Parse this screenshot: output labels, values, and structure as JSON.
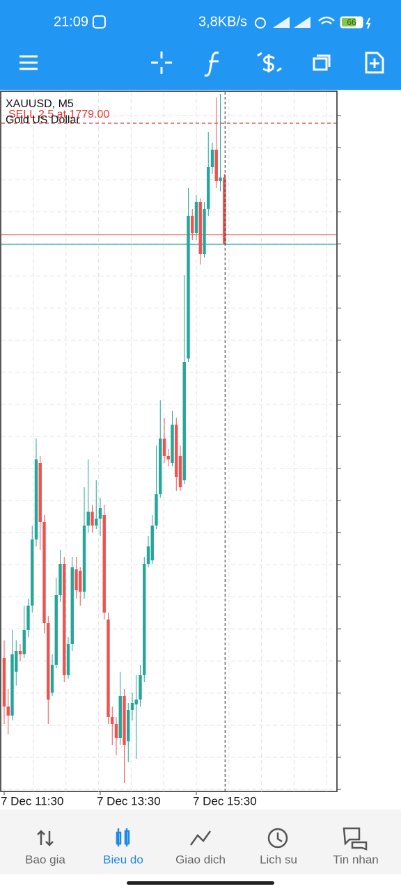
{
  "status_bar": {
    "time": "21:09",
    "network_speed": "3,8KB/s",
    "battery": "66"
  },
  "chart_data": {
    "type": "candlestick",
    "symbol": "XAUUSD, M5",
    "description": "Gold US Dollar",
    "order_label": "SELL 2.5 at 1779.00",
    "order_price": 1779.0,
    "order_color": "#e53935",
    "price_lines": [
      {
        "value": 1777.4,
        "color": "#ef5350"
      },
      {
        "value": 1777.26,
        "color": "#26a69a"
      }
    ],
    "categories": [
      "7 Dec 11:30",
      null,
      null,
      null,
      null,
      null,
      null,
      null,
      null,
      null,
      null,
      null,
      null,
      null,
      null,
      null,
      null,
      null,
      null,
      null,
      null,
      null,
      null,
      null,
      "7 Dec 13:30",
      null,
      null,
      null,
      null,
      null,
      null,
      null,
      null,
      null,
      null,
      null,
      null,
      null,
      null,
      null,
      null,
      null,
      null,
      null,
      null,
      null,
      null,
      null,
      "7 Dec 15:30",
      null,
      null,
      null,
      null,
      null,
      null,
      null
    ],
    "open": [
      1771.32,
      1770.62,
      1770.49,
      1771.12,
      1771.42,
      1771.37,
      1771.72,
      1772.07,
      1773.02,
      1774.12,
      1773.27,
      1771.82,
      1770.82,
      1771.22,
      1772.22,
      1772.67,
      1771.07,
      1771.52,
      1772.59,
      1772.57,
      1772.27,
      1773.22,
      1773.42,
      1773.22,
      1773.32,
      1773.37,
      1771.87,
      1770.47,
      1770.37,
      1770.17,
      1770.77,
      1770.12,
      1770.57,
      1770.65,
      1770.72,
      1771.07,
      1772.67,
      1772.72,
      1773.22,
      1773.67,
      1774.47,
      1774.22,
      1774.12,
      1774.67,
      1774.22,
      1773.87,
      1775.62,
      1777.67,
      1777.42,
      1777.87,
      1777.12,
      1777.77,
      1778.37,
      1778.62,
      1778.17,
      1778.22
    ],
    "high": [
      1771.57,
      1770.87,
      1771.72,
      1771.57,
      1771.52,
      1772.07,
      1772.17,
      1773.22,
      1774.47,
      1774.22,
      1773.37,
      1771.92,
      1771.37,
      1772.47,
      1772.87,
      1772.77,
      1771.62,
      1772.77,
      1772.77,
      1772.62,
      1773.77,
      1774.17,
      1773.52,
      1773.87,
      1773.62,
      1773.52,
      1771.97,
      1770.62,
      1770.47,
      1771.12,
      1770.87,
      1770.67,
      1770.82,
      1771.07,
      1771.22,
      1772.77,
      1773.07,
      1773.37,
      1774.37,
      1775.02,
      1774.77,
      1774.32,
      1774.87,
      1774.77,
      1774.37,
      1776.82,
      1778.07,
      1777.77,
      1777.97,
      1777.92,
      1777.87,
      1778.87,
      1778.72,
      1779.37,
      1779.42,
      1778.27
    ],
    "low": [
      1770.37,
      1770.22,
      1770.42,
      1770.92,
      1771.27,
      1771.32,
      1771.62,
      1771.97,
      1772.92,
      1772.87,
      1771.67,
      1770.37,
      1770.77,
      1771.17,
      1772.12,
      1770.97,
      1771.02,
      1771.42,
      1772.17,
      1772.07,
      1772.17,
      1773.12,
      1773.12,
      1773.17,
      1773.07,
      1771.87,
      1770.37,
      1770.07,
      1769.92,
      1770.07,
      1769.52,
      1769.82,
      1770.42,
      1769.87,
      1770.62,
      1770.97,
      1772.62,
      1772.67,
      1773.17,
      1773.62,
      1774.12,
      1774.07,
      1774.07,
      1773.72,
      1773.72,
      1773.82,
      1775.57,
      1777.32,
      1777.32,
      1776.97,
      1777.07,
      1777.67,
      1778.27,
      1778.07,
      1778.02,
      1777.37
    ],
    "close": [
      1770.62,
      1770.49,
      1771.37,
      1771.42,
      1771.37,
      1771.72,
      1772.07,
      1773.02,
      1774.17,
      1773.27,
      1771.82,
      1770.72,
      1771.22,
      1772.22,
      1772.67,
      1771.07,
      1771.52,
      1772.62,
      1772.29,
      1772.27,
      1773.22,
      1773.42,
      1773.22,
      1773.32,
      1773.47,
      1771.97,
      1770.47,
      1770.37,
      1770.17,
      1770.77,
      1770.07,
      1770.57,
      1770.67,
      1770.72,
      1771.07,
      1772.67,
      1772.92,
      1773.22,
      1773.67,
      1774.47,
      1774.22,
      1774.17,
      1774.67,
      1773.92,
      1773.77,
      1775.57,
      1777.67,
      1777.42,
      1777.87,
      1777.12,
      1777.77,
      1778.37,
      1778.62,
      1778.17,
      1778.22,
      1777.27
    ],
    "up_color": "#26a69a",
    "down_color": "#ef5350",
    "ylim": [
      1769.4,
      1779.45
    ],
    "grid": true
  },
  "nav": {
    "items": [
      "Bao gia",
      "Bieu do",
      "Giao dich",
      "Lich su",
      "Tin nhan"
    ],
    "active": 1
  }
}
